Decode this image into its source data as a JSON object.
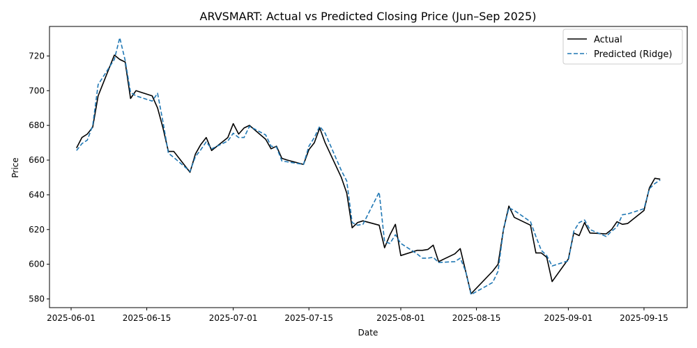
{
  "chart_data": {
    "type": "line",
    "title": "ARVSMART: Actual vs Predicted Closing Price (Jun–Sep 2025)",
    "xlabel": "Date",
    "ylabel": "Price",
    "x_ticks": [
      "2025-06-01",
      "2025-06-15",
      "2025-07-01",
      "2025-07-15",
      "2025-08-01",
      "2025-08-15",
      "2025-09-01",
      "2025-09-15"
    ],
    "y_ticks": [
      580,
      600,
      620,
      640,
      660,
      680,
      700,
      720
    ],
    "xlim": [
      "2025-05-28",
      "2025-09-23"
    ],
    "ylim": [
      575,
      737
    ],
    "grid": false,
    "legend_position": "top-right",
    "series": [
      {
        "name": "Actual",
        "color": "#000000",
        "style": "solid",
        "points": [
          [
            "2025-06-02",
            667
          ],
          [
            "2025-06-03",
            673
          ],
          [
            "2025-06-04",
            675
          ],
          [
            "2025-06-05",
            679
          ],
          [
            "2025-06-06",
            697
          ],
          [
            "2025-06-09",
            720.5
          ],
          [
            "2025-06-10",
            718
          ],
          [
            "2025-06-11",
            716.5
          ],
          [
            "2025-06-12",
            695.5
          ],
          [
            "2025-06-13",
            700
          ],
          [
            "2025-06-16",
            697
          ],
          [
            "2025-06-17",
            690
          ],
          [
            "2025-06-18",
            678.5
          ],
          [
            "2025-06-19",
            665
          ],
          [
            "2025-06-20",
            665
          ],
          [
            "2025-06-23",
            653
          ],
          [
            "2025-06-24",
            663.5
          ],
          [
            "2025-06-25",
            669
          ],
          [
            "2025-06-26",
            673
          ],
          [
            "2025-06-27",
            665.5
          ],
          [
            "2025-06-30",
            673
          ],
          [
            "2025-07-01",
            681
          ],
          [
            "2025-07-02",
            675
          ],
          [
            "2025-07-03",
            678.5
          ],
          [
            "2025-07-04",
            680
          ],
          [
            "2025-07-07",
            672
          ],
          [
            "2025-07-08",
            666.5
          ],
          [
            "2025-07-09",
            668
          ],
          [
            "2025-07-10",
            661
          ],
          [
            "2025-07-11",
            660
          ],
          [
            "2025-07-14",
            657.5
          ],
          [
            "2025-07-15",
            666
          ],
          [
            "2025-07-16",
            670
          ],
          [
            "2025-07-17",
            678.5
          ],
          [
            "2025-07-18",
            670
          ],
          [
            "2025-07-21",
            650
          ],
          [
            "2025-07-22",
            641
          ],
          [
            "2025-07-23",
            621
          ],
          [
            "2025-07-24",
            624
          ],
          [
            "2025-07-25",
            625
          ],
          [
            "2025-07-28",
            622.5
          ],
          [
            "2025-07-29",
            609.5
          ],
          [
            "2025-07-30",
            617
          ],
          [
            "2025-07-31",
            623
          ],
          [
            "2025-08-01",
            605
          ],
          [
            "2025-08-04",
            608
          ],
          [
            "2025-08-05",
            608
          ],
          [
            "2025-08-06",
            608.5
          ],
          [
            "2025-08-07",
            611
          ],
          [
            "2025-08-08",
            601.5
          ],
          [
            "2025-08-11",
            606
          ],
          [
            "2025-08-12",
            609
          ],
          [
            "2025-08-13",
            596
          ],
          [
            "2025-08-14",
            583
          ],
          [
            "2025-08-18",
            596
          ],
          [
            "2025-08-19",
            600
          ],
          [
            "2025-08-20",
            620
          ],
          [
            "2025-08-21",
            633.5
          ],
          [
            "2025-08-22",
            627
          ],
          [
            "2025-08-25",
            622.5
          ],
          [
            "2025-08-26",
            606.5
          ],
          [
            "2025-08-27",
            606.5
          ],
          [
            "2025-08-28",
            604
          ],
          [
            "2025-08-29",
            590
          ],
          [
            "2025-09-01",
            603
          ],
          [
            "2025-09-02",
            618
          ],
          [
            "2025-09-03",
            616.5
          ],
          [
            "2025-09-04",
            624
          ],
          [
            "2025-09-05",
            618
          ],
          [
            "2025-09-08",
            617.5
          ],
          [
            "2025-09-09",
            620
          ],
          [
            "2025-09-10",
            624.5
          ],
          [
            "2025-09-11",
            623
          ],
          [
            "2025-09-12",
            623.5
          ],
          [
            "2025-09-15",
            631
          ],
          [
            "2025-09-16",
            644
          ],
          [
            "2025-09-17",
            649.5
          ],
          [
            "2025-09-18",
            649
          ]
        ]
      },
      {
        "name": "Predicted (Ridge)",
        "color": "#1f77b4",
        "style": "dashed",
        "points": [
          [
            "2025-06-02",
            665.5
          ],
          [
            "2025-06-03",
            669.5
          ],
          [
            "2025-06-04",
            671.5
          ],
          [
            "2025-06-05",
            680
          ],
          [
            "2025-06-06",
            703.5
          ],
          [
            "2025-06-09",
            718
          ],
          [
            "2025-06-10",
            730.5
          ],
          [
            "2025-06-11",
            717.5
          ],
          [
            "2025-06-12",
            699
          ],
          [
            "2025-06-13",
            697
          ],
          [
            "2025-06-16",
            694
          ],
          [
            "2025-06-17",
            698.5
          ],
          [
            "2025-06-18",
            682
          ],
          [
            "2025-06-19",
            664
          ],
          [
            "2025-06-20",
            661.5
          ],
          [
            "2025-06-23",
            653.5
          ],
          [
            "2025-06-24",
            662
          ],
          [
            "2025-06-25",
            666
          ],
          [
            "2025-06-26",
            670.5
          ],
          [
            "2025-06-27",
            666.5
          ],
          [
            "2025-06-30",
            671
          ],
          [
            "2025-07-01",
            675.5
          ],
          [
            "2025-07-02",
            673
          ],
          [
            "2025-07-03",
            673
          ],
          [
            "2025-07-04",
            679.5
          ],
          [
            "2025-07-07",
            674.5
          ],
          [
            "2025-07-08",
            668
          ],
          [
            "2025-07-09",
            667.5
          ],
          [
            "2025-07-10",
            659.5
          ],
          [
            "2025-07-11",
            659
          ],
          [
            "2025-07-14",
            657.5
          ],
          [
            "2025-07-15",
            668
          ],
          [
            "2025-07-16",
            673
          ],
          [
            "2025-07-17",
            679.5
          ],
          [
            "2025-07-18",
            675.5
          ],
          [
            "2025-07-21",
            654
          ],
          [
            "2025-07-22",
            648
          ],
          [
            "2025-07-23",
            624
          ],
          [
            "2025-07-24",
            622.5
          ],
          [
            "2025-07-25",
            623
          ],
          [
            "2025-07-28",
            641.5
          ],
          [
            "2025-07-29",
            613
          ],
          [
            "2025-07-30",
            612
          ],
          [
            "2025-07-31",
            617
          ],
          [
            "2025-08-01",
            612
          ],
          [
            "2025-08-04",
            606
          ],
          [
            "2025-08-05",
            603.5
          ],
          [
            "2025-08-06",
            603.5
          ],
          [
            "2025-08-07",
            604
          ],
          [
            "2025-08-08",
            601
          ],
          [
            "2025-08-11",
            601.5
          ],
          [
            "2025-08-12",
            603.5
          ],
          [
            "2025-08-13",
            596
          ],
          [
            "2025-08-14",
            582.5
          ],
          [
            "2025-08-18",
            589.5
          ],
          [
            "2025-08-19",
            596
          ],
          [
            "2025-08-20",
            620
          ],
          [
            "2025-08-21",
            632.5
          ],
          [
            "2025-08-22",
            631
          ],
          [
            "2025-08-25",
            624.5
          ],
          [
            "2025-08-26",
            616
          ],
          [
            "2025-08-27",
            608
          ],
          [
            "2025-08-28",
            605
          ],
          [
            "2025-08-29",
            599
          ],
          [
            "2025-09-01",
            602
          ],
          [
            "2025-09-02",
            619
          ],
          [
            "2025-09-03",
            624
          ],
          [
            "2025-09-04",
            625.5
          ],
          [
            "2025-09-05",
            620
          ],
          [
            "2025-09-08",
            616
          ],
          [
            "2025-09-09",
            619
          ],
          [
            "2025-09-10",
            621.5
          ],
          [
            "2025-09-11",
            628.5
          ],
          [
            "2025-09-12",
            629
          ],
          [
            "2025-09-15",
            632
          ],
          [
            "2025-09-16",
            643.5
          ],
          [
            "2025-09-17",
            646.5
          ],
          [
            "2025-09-18",
            648.5
          ]
        ]
      }
    ]
  }
}
